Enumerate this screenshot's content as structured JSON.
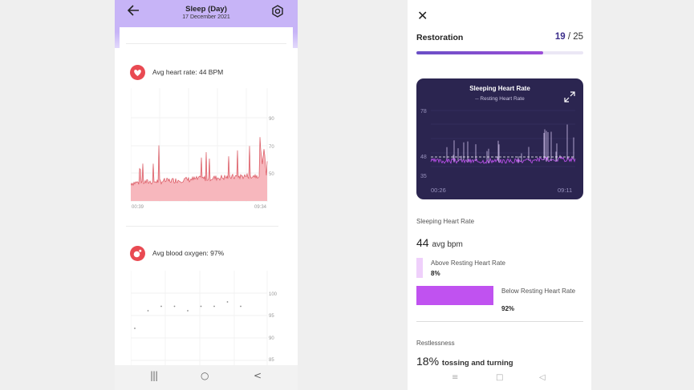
{
  "left": {
    "header": {
      "title": "Sleep (Day)",
      "date": "17 December 2021"
    },
    "heart": {
      "label": "Avg heart rate: 44 BPM",
      "y_ticks": [
        "90",
        "70",
        "50"
      ],
      "x_start": "00:39",
      "x_end": "09:34"
    },
    "oxygen": {
      "label": "Avg blood oxygen: 97%",
      "y_ticks": [
        "100",
        "95",
        "90",
        "85"
      ],
      "points": [
        92,
        96,
        97,
        97,
        96,
        97,
        97,
        98,
        97
      ]
    },
    "nav": {
      "recents": "|||",
      "home": "○",
      "back": "<"
    }
  },
  "right": {
    "close": "✕",
    "section_title": "Restoration",
    "score": "19",
    "score_total": "/ 25",
    "progress": 0.76,
    "card": {
      "title": "Sleeping Heart Rate",
      "legend": "-- Resting Heart Rate",
      "y_ticks": [
        "78",
        "48",
        "35"
      ],
      "x_start": "00:26",
      "x_end": "09:11"
    },
    "hr_section_label": "Sleeping Heart Rate",
    "avg_value": "44",
    "avg_unit": "avg bpm",
    "above_label": "Above Resting Heart Rate",
    "above_pct": "8%",
    "below_label": "Below Resting Heart Rate",
    "below_pct": "92%",
    "restless_label": "Restlessness",
    "restless_value": "18%",
    "restless_text": "tossing and turning",
    "nav": {
      "menu": "≡",
      "home": "□",
      "back": "◁"
    }
  },
  "colors": {
    "header_purple": "#c7b4f7",
    "heart_red": "#e94a52",
    "hr_fill": "#f7b7bd",
    "card_dark": "#2b2550",
    "accent_purple": "#c052f0",
    "above_swatch": "#efd0fb",
    "below_swatch": "#c052f0"
  }
}
